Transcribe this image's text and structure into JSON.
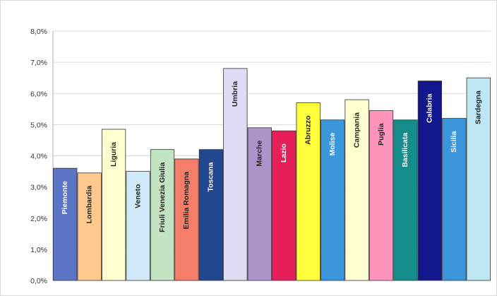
{
  "chart_data": {
    "type": "bar",
    "categories": [
      "Piemonte",
      "Lombardia",
      "Liguria",
      "Veneto",
      "Friuli Venezia Giulia",
      "Emilia Romagna",
      "Toscana",
      "Umbria",
      "Marche",
      "Lazio",
      "Abruzzo",
      "Molise",
      "Campania",
      "Puglia",
      "Basilicata",
      "Calabria",
      "Sicilia",
      "Sardegna"
    ],
    "values": [
      3.6,
      3.45,
      4.85,
      3.5,
      4.2,
      3.9,
      4.2,
      6.8,
      4.9,
      4.8,
      5.7,
      5.15,
      5.8,
      5.45,
      5.15,
      6.4,
      5.2,
      6.5
    ],
    "colors": [
      "#5b74c6",
      "#ffc88c",
      "#ffffd0",
      "#cfe9f9",
      "#c3e4c3",
      "#f47e69",
      "#22478e",
      "#ddddf6",
      "#ab94c8",
      "#e61e5a",
      "#ffff3c",
      "#3c96dc",
      "#ffffd0",
      "#ff95bd",
      "#148c8c",
      "#12168c",
      "#3c96dc",
      "#bfe6f4"
    ],
    "label_colors": [
      "#ffffff",
      "#222222",
      "#222222",
      "#222222",
      "#222222",
      "#222222",
      "#ffffff",
      "#222222",
      "#222222",
      "#ffffff",
      "#222222",
      "#ffffff",
      "#222222",
      "#222222",
      "#ffffff",
      "#ffffff",
      "#ffffff",
      "#222222"
    ],
    "ylim": [
      0,
      8
    ],
    "yticks": [
      "0,0%",
      "1,0%",
      "2,0%",
      "3,0%",
      "4,0%",
      "5,0%",
      "6,0%",
      "7,0%",
      "8,0%"
    ],
    "grid": true,
    "xlabel": "",
    "ylabel": "",
    "title": ""
  }
}
